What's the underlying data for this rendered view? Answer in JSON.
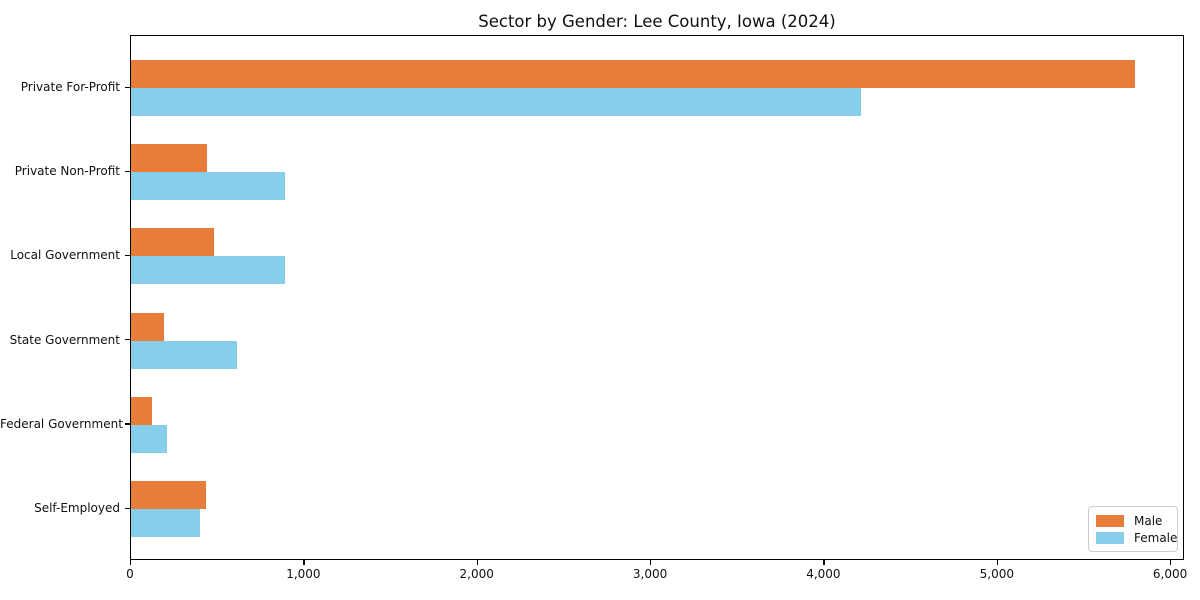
{
  "chart_data": {
    "type": "bar",
    "orientation": "horizontal",
    "title": "Sector by Gender: Lee County, Iowa (2024)",
    "categories": [
      "Private For-Profit",
      "Private Non-Profit",
      "Local Government",
      "State Government",
      "Federal Government",
      "Self-Employed"
    ],
    "series": [
      {
        "name": "Male",
        "color": "#e87c3b",
        "values": [
          5790,
          440,
          480,
          190,
          120,
          430
        ]
      },
      {
        "name": "Female",
        "color": "#87ceeb",
        "values": [
          4210,
          890,
          890,
          610,
          210,
          400
        ]
      }
    ],
    "xlabel": "",
    "ylabel": "",
    "xlim": [
      0,
      6080
    ],
    "xticks": [
      {
        "value": 0,
        "label": "0"
      },
      {
        "value": 1000,
        "label": "1,000"
      },
      {
        "value": 2000,
        "label": "2,000"
      },
      {
        "value": 3000,
        "label": "3,000"
      },
      {
        "value": 4000,
        "label": "4,000"
      },
      {
        "value": 5000,
        "label": "5,000"
      },
      {
        "value": 6000,
        "label": "6,000"
      }
    ],
    "grid": false,
    "legend_position": "lower right",
    "axis_color": "#000000",
    "background_color": "#ffffff"
  }
}
